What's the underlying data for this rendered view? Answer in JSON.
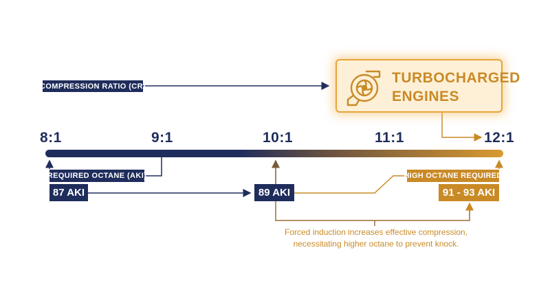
{
  "axis": {
    "ticks": [
      "8:1",
      "9:1",
      "10:1",
      "11:1",
      "12:1"
    ]
  },
  "compression_ratio_label": "COMPRESSION RATIO (CR)",
  "required_octane_label": "REQUIRED OCTANE (AKI)",
  "high_octane_label": "HIGH OCTANE REQUIRED",
  "octane_levels": {
    "low": "87 AKI",
    "mid": "89 AKI",
    "high": "91 - 93 AKI"
  },
  "turbo": {
    "title_line1": "TURBOCHARGED",
    "title_line2": "ENGINES",
    "icon": "turbocharger-icon"
  },
  "note": {
    "line1": "Forced induction increases effective compression,",
    "line2": "necessitating higher octane to prevent knock."
  },
  "colors": {
    "navy": "#1f2d5c",
    "gold": "#c98a26",
    "gold_light": "#e6a33a",
    "card_fill": "#fdf0d6"
  }
}
